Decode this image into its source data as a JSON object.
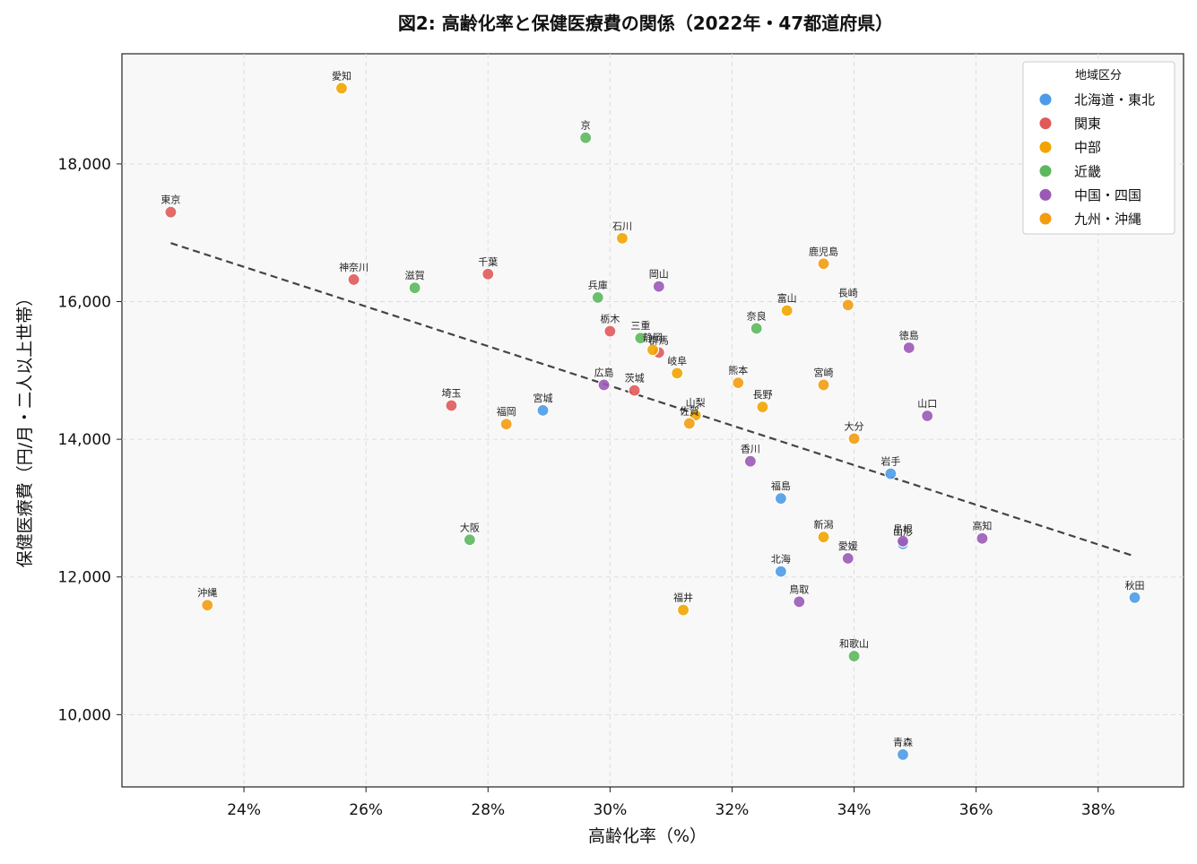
{
  "chart_data": {
    "type": "scatter",
    "title": "図2: 高齢化率と保健医療費の関係（2022年・47都道府県）",
    "xlabel": "高齢化率（%）",
    "ylabel": "保健医療費（円/月・二人以上世帯）",
    "xlim": [
      22.0,
      39.4
    ],
    "ylim": [
      8950,
      19600
    ],
    "x_ticks": [
      24,
      26,
      28,
      30,
      32,
      34,
      36,
      38
    ],
    "x_tick_labels": [
      "24%",
      "26%",
      "28%",
      "30%",
      "32%",
      "34%",
      "36%",
      "38%"
    ],
    "y_ticks": [
      10000,
      12000,
      14000,
      16000,
      18000
    ],
    "y_tick_labels": [
      "10,000",
      "12,000",
      "14,000",
      "16,000",
      "18,000"
    ],
    "grid": true,
    "legend_position": "top-right",
    "legend_title": "地域区分",
    "groups": [
      {
        "name": "北海道・東北",
        "color": "#4C9BE8"
      },
      {
        "name": "関東",
        "color": "#E05A5A"
      },
      {
        "name": "中部",
        "color": "#F0A500"
      },
      {
        "name": "近畿",
        "color": "#5CB85C"
      },
      {
        "name": "中国・四国",
        "color": "#9B59B6"
      },
      {
        "name": "九州・沖縄",
        "color": "#F39C12"
      }
    ],
    "trendline": {
      "x": [
        22.8,
        38.6
      ],
      "y": [
        16850,
        12300
      ]
    },
    "points": [
      {
        "label": "愛知",
        "x": 25.6,
        "y": 19100,
        "group": 2
      },
      {
        "label": "京",
        "x": 29.6,
        "y": 18380,
        "group": 3
      },
      {
        "label": "東京",
        "x": 22.8,
        "y": 17300,
        "group": 1
      },
      {
        "label": "石川",
        "x": 30.2,
        "y": 16920,
        "group": 2
      },
      {
        "label": "鹿児島",
        "x": 33.5,
        "y": 16550,
        "group": 5
      },
      {
        "label": "千葉",
        "x": 28.0,
        "y": 16400,
        "group": 1
      },
      {
        "label": "神奈川",
        "x": 25.8,
        "y": 16320,
        "group": 1
      },
      {
        "label": "岡山",
        "x": 30.8,
        "y": 16220,
        "group": 4
      },
      {
        "label": "滋賀",
        "x": 26.8,
        "y": 16200,
        "group": 3
      },
      {
        "label": "兵庫",
        "x": 29.8,
        "y": 16060,
        "group": 3
      },
      {
        "label": "長崎",
        "x": 33.9,
        "y": 15950,
        "group": 5
      },
      {
        "label": "富山",
        "x": 32.9,
        "y": 15870,
        "group": 2
      },
      {
        "label": "奈良",
        "x": 32.4,
        "y": 15610,
        "group": 3
      },
      {
        "label": "栃木",
        "x": 30.0,
        "y": 15570,
        "group": 1
      },
      {
        "label": "三重",
        "x": 30.5,
        "y": 15470,
        "group": 3
      },
      {
        "label": "群馬",
        "x": 30.8,
        "y": 15260,
        "group": 1
      },
      {
        "label": "静岡",
        "x": 30.7,
        "y": 15300,
        "group": 2
      },
      {
        "label": "徳島",
        "x": 34.9,
        "y": 15330,
        "group": 4
      },
      {
        "label": "岐阜",
        "x": 31.1,
        "y": 14960,
        "group": 2
      },
      {
        "label": "熊本",
        "x": 32.1,
        "y": 14820,
        "group": 5
      },
      {
        "label": "広島",
        "x": 29.9,
        "y": 14790,
        "group": 4
      },
      {
        "label": "宮崎",
        "x": 33.5,
        "y": 14790,
        "group": 5
      },
      {
        "label": "茨城",
        "x": 30.4,
        "y": 14710,
        "group": 1
      },
      {
        "label": "埼玉",
        "x": 27.4,
        "y": 14490,
        "group": 1
      },
      {
        "label": "長野",
        "x": 32.5,
        "y": 14470,
        "group": 2
      },
      {
        "label": "宮城",
        "x": 28.9,
        "y": 14420,
        "group": 0
      },
      {
        "label": "山口",
        "x": 35.2,
        "y": 14340,
        "group": 4
      },
      {
        "label": "山梨",
        "x": 31.4,
        "y": 14350,
        "group": 2
      },
      {
        "label": "佐賀",
        "x": 31.3,
        "y": 14230,
        "group": 5
      },
      {
        "label": "福岡",
        "x": 28.3,
        "y": 14220,
        "group": 5
      },
      {
        "label": "大分",
        "x": 34.0,
        "y": 14010,
        "group": 5
      },
      {
        "label": "香川",
        "x": 32.3,
        "y": 13680,
        "group": 4
      },
      {
        "label": "岩手",
        "x": 34.6,
        "y": 13500,
        "group": 0
      },
      {
        "label": "福島",
        "x": 32.8,
        "y": 13140,
        "group": 0
      },
      {
        "label": "新潟",
        "x": 33.5,
        "y": 12580,
        "group": 2
      },
      {
        "label": "大阪",
        "x": 27.7,
        "y": 12540,
        "group": 3
      },
      {
        "label": "高知",
        "x": 36.1,
        "y": 12560,
        "group": 4
      },
      {
        "label": "山形",
        "x": 34.8,
        "y": 12480,
        "group": 0
      },
      {
        "label": "島根",
        "x": 34.8,
        "y": 12520,
        "group": 4
      },
      {
        "label": "愛媛",
        "x": 33.9,
        "y": 12270,
        "group": 4
      },
      {
        "label": "北海",
        "x": 32.8,
        "y": 12080,
        "group": 0
      },
      {
        "label": "秋田",
        "x": 38.6,
        "y": 11700,
        "group": 0
      },
      {
        "label": "鳥取",
        "x": 33.1,
        "y": 11640,
        "group": 4
      },
      {
        "label": "沖縄",
        "x": 23.4,
        "y": 11590,
        "group": 5
      },
      {
        "label": "福井",
        "x": 31.2,
        "y": 11520,
        "group": 2
      },
      {
        "label": "和歌山",
        "x": 34.0,
        "y": 10850,
        "group": 3
      },
      {
        "label": "青森",
        "x": 34.8,
        "y": 9420,
        "group": 0
      }
    ]
  }
}
